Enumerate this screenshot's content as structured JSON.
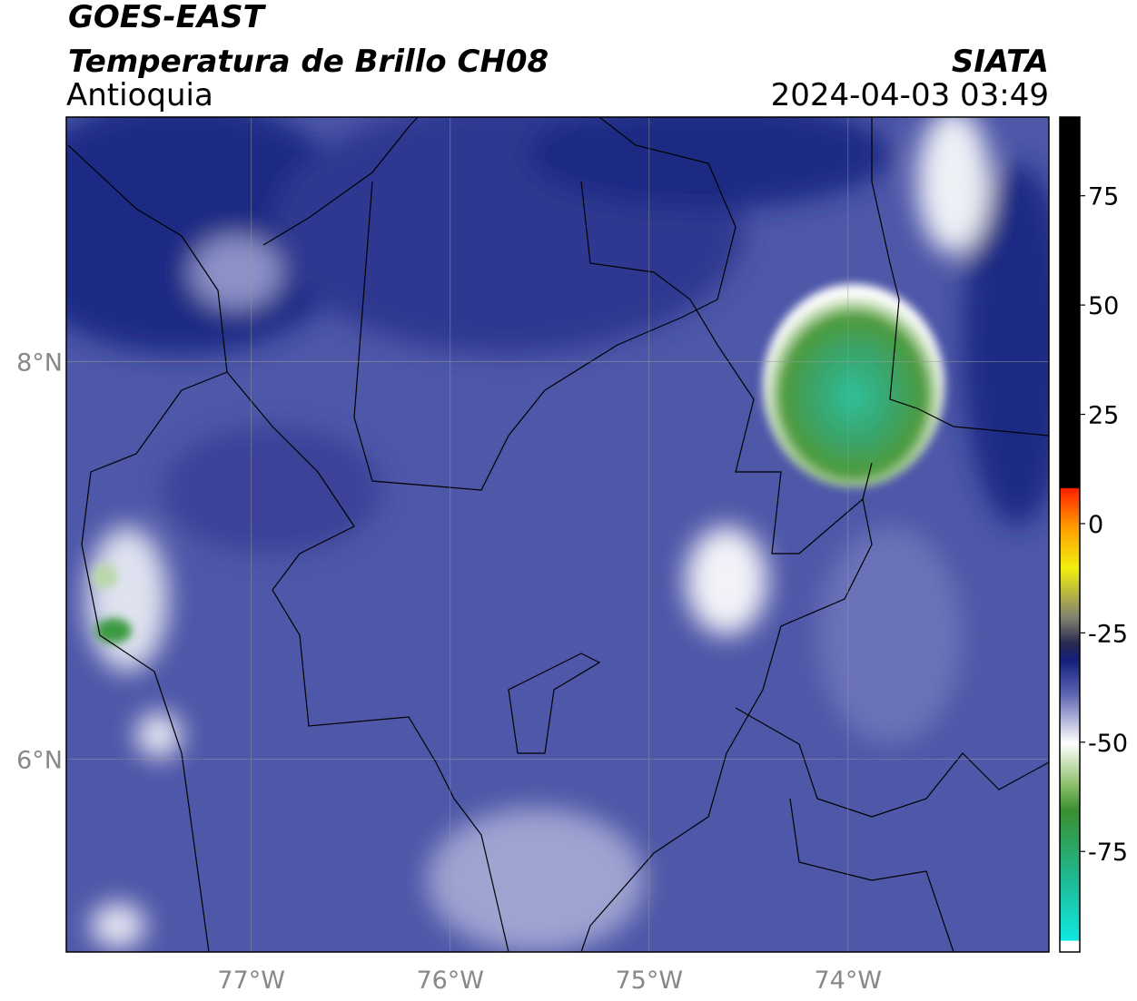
{
  "header": {
    "satellite": "GOES-EAST",
    "product": "Temperatura de Brillo CH08",
    "region": "Antioquia",
    "agency": "SIATA",
    "timestamp": "2024-04-03 03:49"
  },
  "map": {
    "xlim": [
      -77.93,
      -72.99
    ],
    "ylim": [
      5.03,
      9.23
    ],
    "xticks": [
      {
        "value": -77,
        "label": "77°W"
      },
      {
        "value": -76,
        "label": "76°W"
      },
      {
        "value": -75,
        "label": "75°W"
      },
      {
        "value": -74,
        "label": "74°W"
      }
    ],
    "yticks": [
      {
        "value": 8,
        "label": "8°N"
      },
      {
        "value": 6,
        "label": "6°N"
      }
    ],
    "grid": true
  },
  "colorbar": {
    "lim": [
      -98,
      93
    ],
    "ticks": [
      75,
      50,
      25,
      0,
      -25,
      -50,
      -75
    ]
  }
}
